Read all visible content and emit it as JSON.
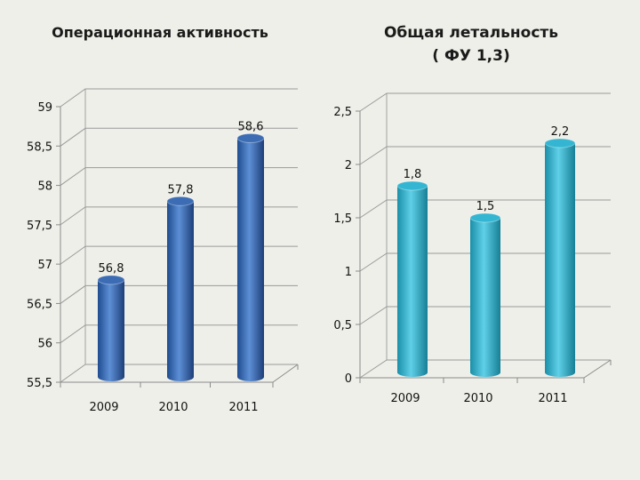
{
  "chart_data": [
    {
      "type": "bar",
      "title": "Операционная активность",
      "subtitle": "",
      "categories": [
        "2009",
        "2010",
        "2011"
      ],
      "values": [
        56.8,
        57.8,
        58.6
      ],
      "value_labels": [
        "56,8",
        "57,8",
        "58,6"
      ],
      "ylim": [
        55.5,
        59
      ],
      "y_ticks": [
        "55,5",
        "56",
        "56,5",
        "57",
        "57,5",
        "58",
        "58,5",
        "59"
      ],
      "xlabel": "",
      "ylabel": "",
      "grid": true,
      "color": "#3f6fb8"
    },
    {
      "type": "bar",
      "title": "Общая летальность",
      "subtitle": "( ФУ 1,3)",
      "categories": [
        "2009",
        "2010",
        "2011"
      ],
      "values": [
        1.8,
        1.5,
        2.2
      ],
      "value_labels": [
        "1,8",
        "1,5",
        "2,2"
      ],
      "ylim": [
        0,
        2.5
      ],
      "y_ticks": [
        "0",
        "0,5",
        "1",
        "1,5",
        "2",
        "2,5"
      ],
      "xlabel": "",
      "ylabel": "",
      "grid": true,
      "color": "#2fb3cf"
    }
  ]
}
